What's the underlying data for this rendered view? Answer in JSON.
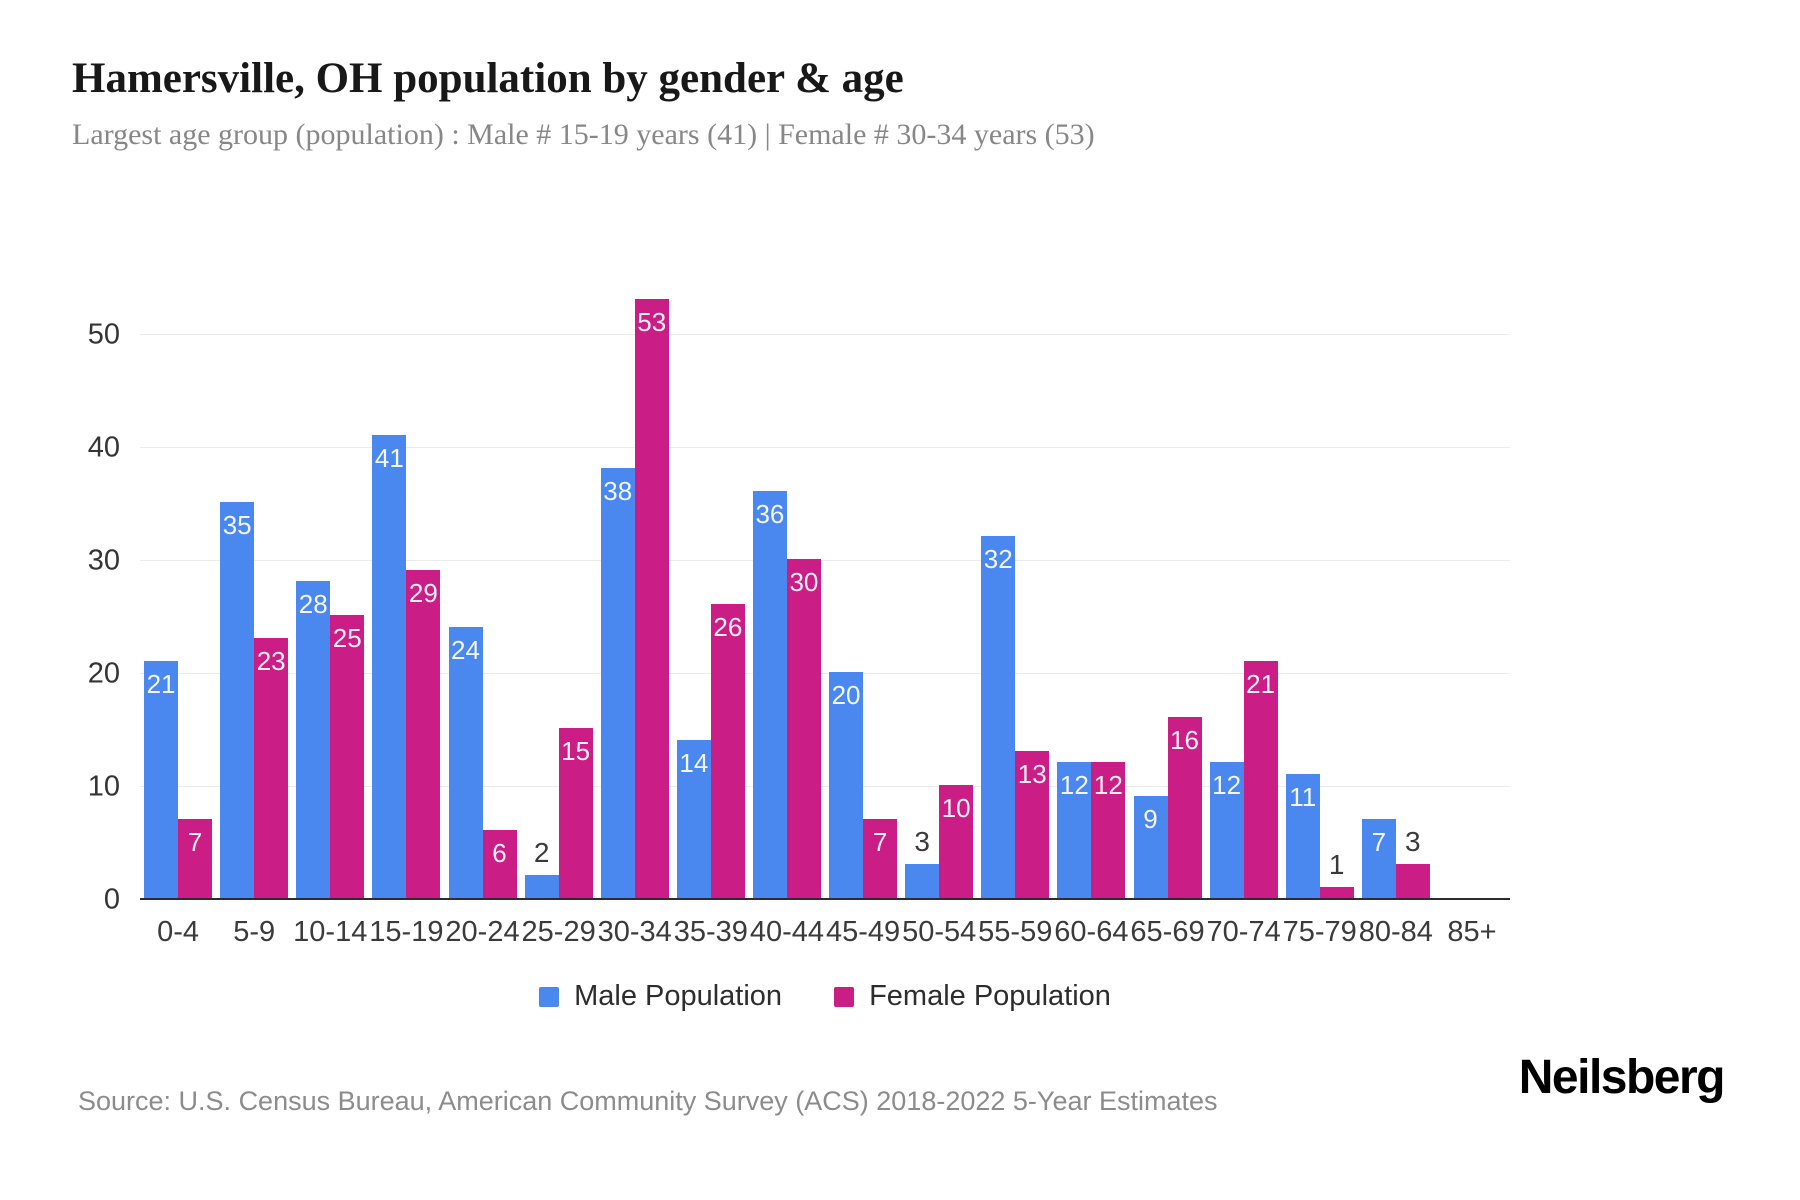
{
  "header": {
    "title": "Hamersville, OH population by gender & age",
    "subtitle": "Largest age group (population) : Male # 15-19 years (41) | Female # 30-34 years (53)"
  },
  "footer": {
    "source": "Source: U.S. Census Bureau, American Community Survey (ACS) 2018-2022 5-Year Estimates",
    "logo": "Neilsberg"
  },
  "colors": {
    "male": "#4a87ee",
    "female": "#cb1d86",
    "grid": "#ececec",
    "axis_line": "#2d2d2d",
    "tick_text": "#3b3b3b",
    "value_inside": "#ffffff",
    "value_outside": "#3a3a3a"
  },
  "chart_data": {
    "type": "bar",
    "title": "Hamersville, OH population by gender & age",
    "xlabel": "",
    "ylabel": "",
    "categories": [
      "0-4",
      "5-9",
      "10-14",
      "15-19",
      "20-24",
      "25-29",
      "30-34",
      "35-39",
      "40-44",
      "45-49",
      "50-54",
      "55-59",
      "60-64",
      "65-69",
      "70-74",
      "75-79",
      "80-84",
      "85+"
    ],
    "series": [
      {
        "name": "Male Population",
        "color": "#4a87ee",
        "values": [
          21,
          35,
          28,
          41,
          24,
          2,
          38,
          14,
          36,
          20,
          3,
          32,
          12,
          9,
          12,
          11,
          7,
          0
        ]
      },
      {
        "name": "Female Population",
        "color": "#cb1d86",
        "values": [
          7,
          23,
          25,
          29,
          6,
          15,
          53,
          26,
          30,
          7,
          10,
          13,
          12,
          16,
          21,
          1,
          3,
          0
        ]
      }
    ],
    "yticks": [
      0,
      10,
      20,
      30,
      40,
      50
    ],
    "ylim": [
      0,
      57.5
    ],
    "grid": true,
    "legend_position": "bottom",
    "inside_label_min_value": 6
  }
}
